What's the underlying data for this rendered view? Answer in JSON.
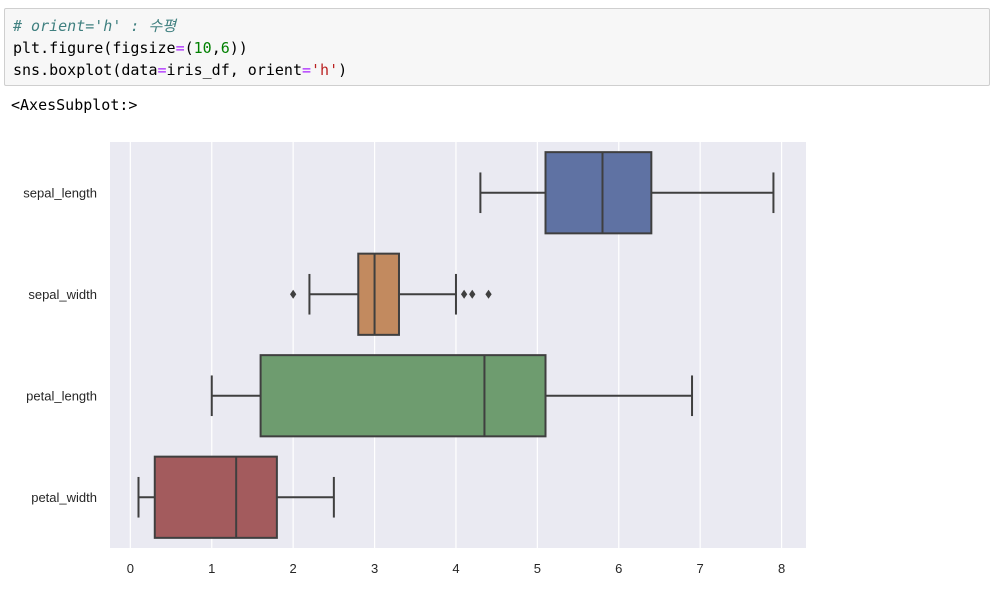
{
  "code_cell": {
    "comment": "# orient='h' : 수평",
    "line2": {
      "a": "plt.figure(figsize",
      "eq": "=",
      "paren_open": "(",
      "n1": "10",
      "comma": ",",
      "n2": "6",
      "paren_close": "))"
    },
    "line3": {
      "a": "sns.boxplot(data",
      "eq": "=",
      "b": "iris_df, orient",
      "eq2": "=",
      "str": "'h'",
      "close": ")"
    }
  },
  "output_text": "<AxesSubplot:>",
  "colors": {
    "plot_background": "#eaeaf2",
    "grid": "#ffffff",
    "line": "#3f3f3f"
  },
  "chart_data": {
    "type": "boxplot",
    "orientation": "horizontal",
    "xlim": [
      -0.25,
      8.3
    ],
    "xticks": [
      0,
      1,
      2,
      3,
      4,
      5,
      6,
      7,
      8
    ],
    "grid": "vertical",
    "categories": [
      "sepal_length",
      "sepal_width",
      "petal_length",
      "petal_width"
    ],
    "boxes": [
      {
        "name": "sepal_length",
        "whisker_low": 4.3,
        "q1": 5.1,
        "median": 5.8,
        "q3": 6.4,
        "whisker_high": 7.9,
        "outliers": [],
        "color": "#5f72a3"
      },
      {
        "name": "sepal_width",
        "whisker_low": 2.2,
        "q1": 2.8,
        "median": 3.0,
        "q3": 3.3,
        "whisker_high": 4.0,
        "outliers": [
          2.0,
          4.1,
          4.2,
          4.4
        ],
        "color": "#c28a5f"
      },
      {
        "name": "petal_length",
        "whisker_low": 1.0,
        "q1": 1.6,
        "median": 4.35,
        "q3": 5.1,
        "whisker_high": 6.9,
        "outliers": [],
        "color": "#6e9c6f"
      },
      {
        "name": "petal_width",
        "whisker_low": 0.1,
        "q1": 0.3,
        "median": 1.3,
        "q3": 1.8,
        "whisker_high": 2.5,
        "outliers": [],
        "color": "#a35b5d"
      }
    ]
  }
}
